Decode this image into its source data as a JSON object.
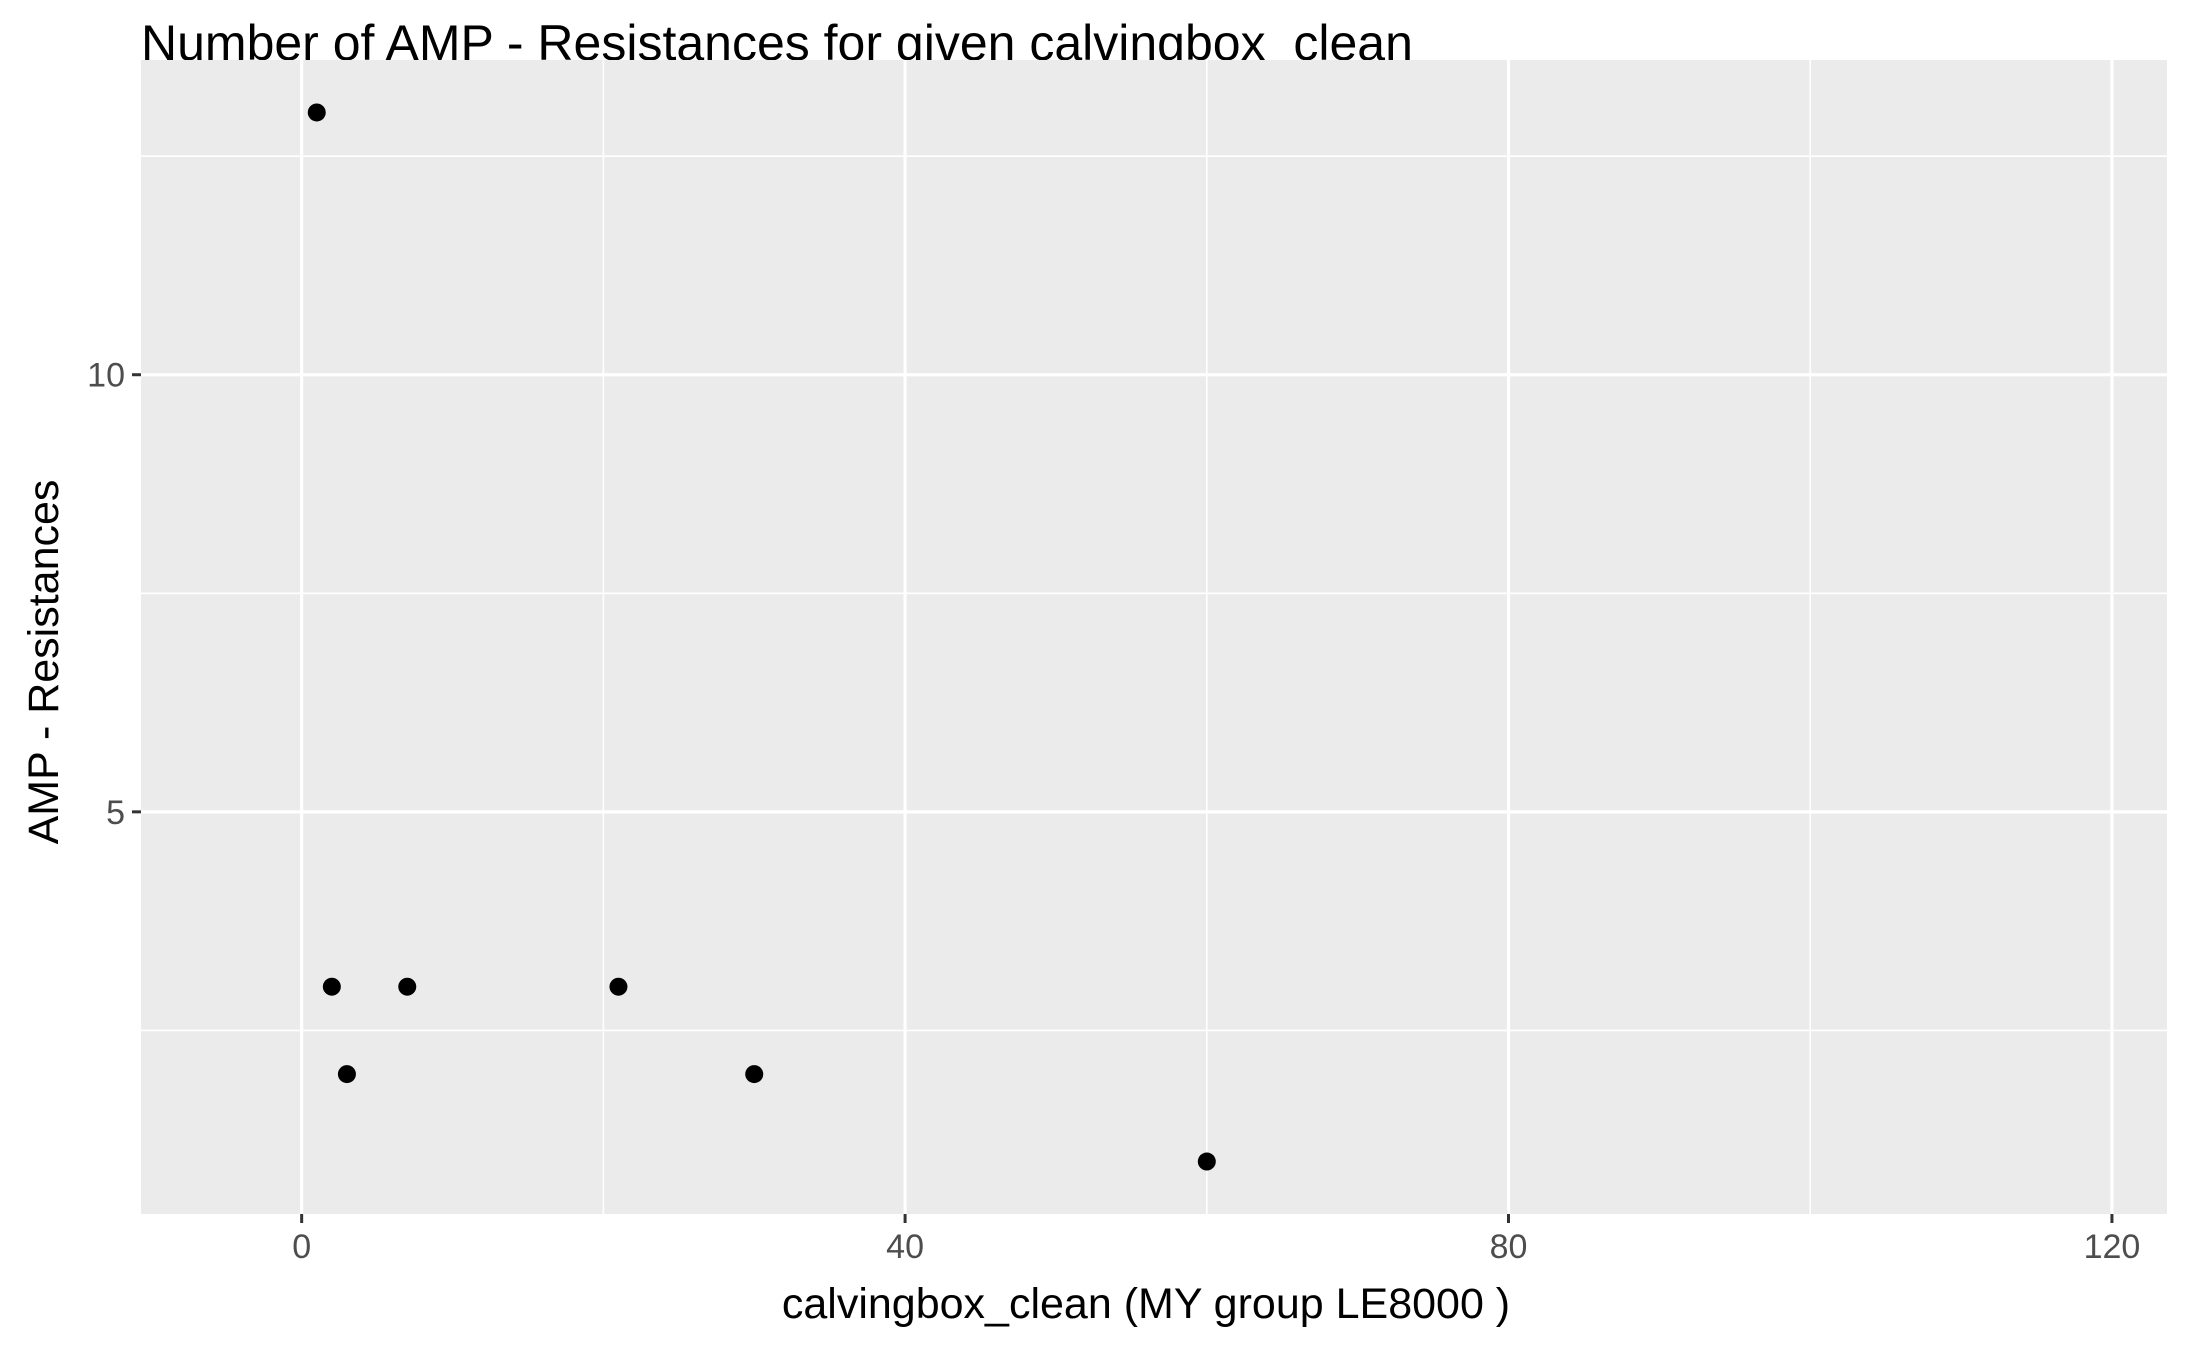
{
  "chart_data": {
    "type": "scatter",
    "title": "Number of AMP - Resistances for given calvingbox_clean",
    "xlabel": "calvingbox_clean     (MY group LE8000 )",
    "ylabel": "AMP - Resistances",
    "xlim": [
      -10.65,
      123.65
    ],
    "ylim": [
      0.4,
      13.6
    ],
    "x_ticks": [
      0,
      40,
      80,
      120
    ],
    "x_tick_labels": [
      "0",
      "40",
      "80",
      "120"
    ],
    "y_ticks": [
      5,
      10
    ],
    "y_tick_labels": [
      "5",
      "10"
    ],
    "x_minor": [
      20,
      60,
      100
    ],
    "y_minor": [
      2.5,
      7.5,
      12.5
    ],
    "grid": true,
    "series": [
      {
        "x": [
          1,
          2,
          3,
          7,
          21,
          30,
          60
        ],
        "y": [
          13,
          3,
          2,
          3,
          3,
          2,
          1
        ]
      }
    ],
    "colors": {
      "panel_background": "#ebebeb",
      "grid_line": "#ffffff",
      "point": "#000000",
      "tick_text": "#4d4d4d",
      "tick_mark": "#333333"
    }
  }
}
